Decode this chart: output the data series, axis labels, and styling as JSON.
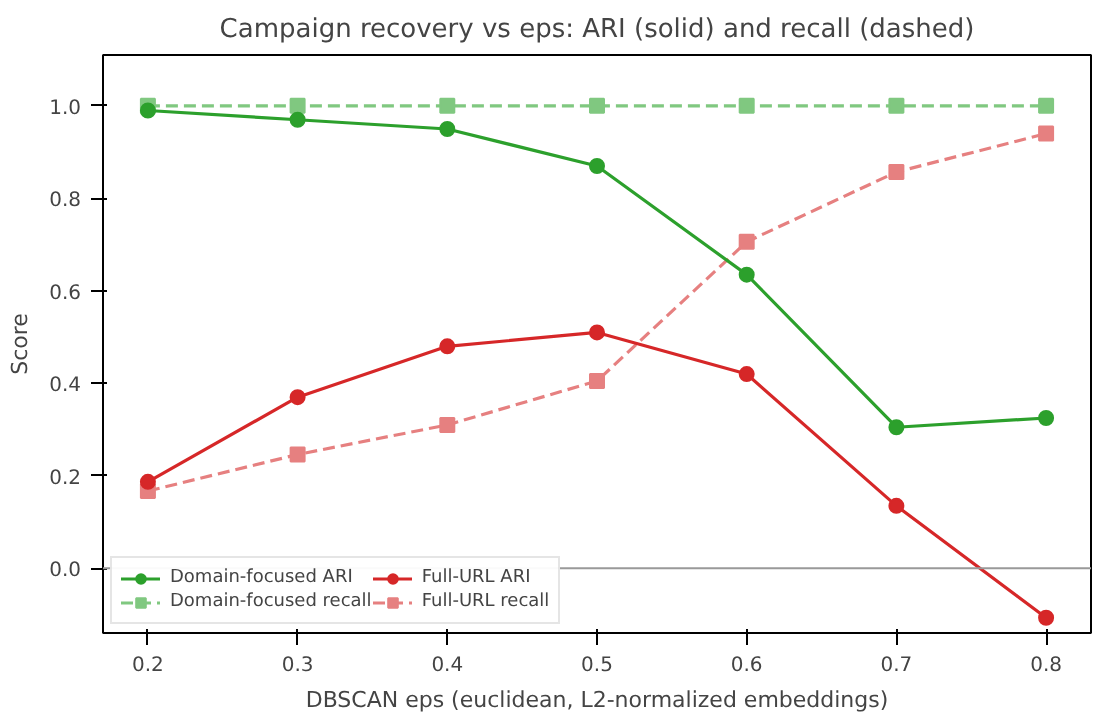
{
  "chart_data": {
    "type": "line",
    "title": "Campaign recovery vs eps: ARI (solid) and recall (dashed)",
    "xlabel": "DBSCAN eps (euclidean, L2-normalized embeddings)",
    "ylabel": "Score",
    "x": [
      0.2,
      0.3,
      0.4,
      0.5,
      0.6,
      0.7,
      0.8
    ],
    "series": [
      {
        "name": "Domain-focused ARI",
        "color": "#2ca02c",
        "marker": "circle",
        "line_style": "solid",
        "values": [
          0.99,
          0.97,
          0.95,
          0.87,
          0.635,
          0.305,
          0.325
        ]
      },
      {
        "name": "Domain-focused recall",
        "color": "#80c880",
        "marker": "square",
        "line_style": "dashed",
        "values": [
          1.0,
          1.0,
          1.0,
          1.0,
          1.0,
          1.0,
          1.0
        ]
      },
      {
        "name": "Full-URL ARI",
        "color": "#d62728",
        "marker": "circle",
        "line_style": "solid",
        "values": [
          0.187,
          0.37,
          0.48,
          0.51,
          0.42,
          0.135,
          -0.107
        ]
      },
      {
        "name": "Full-URL recall",
        "color": "#e68080",
        "marker": "square",
        "line_style": "dashed",
        "values": [
          0.167,
          0.246,
          0.31,
          0.405,
          0.706,
          0.857,
          0.94
        ]
      }
    ],
    "xlim": [
      0.17,
      0.83
    ],
    "ylim": [
      -0.14,
      1.11
    ],
    "xticks": [
      0.2,
      0.3,
      0.4,
      0.5,
      0.6,
      0.7,
      0.8
    ],
    "yticks": [
      {
        "value": 0,
        "label": "0.0"
      },
      0.2,
      0.4,
      0.6,
      0.8,
      {
        "value": 1,
        "label": "1.0"
      }
    ],
    "ref_lines": [
      {
        "axis": "y",
        "value": 0,
        "color": "#999999"
      }
    ],
    "legend": "bottom left",
    "grid": false
  }
}
